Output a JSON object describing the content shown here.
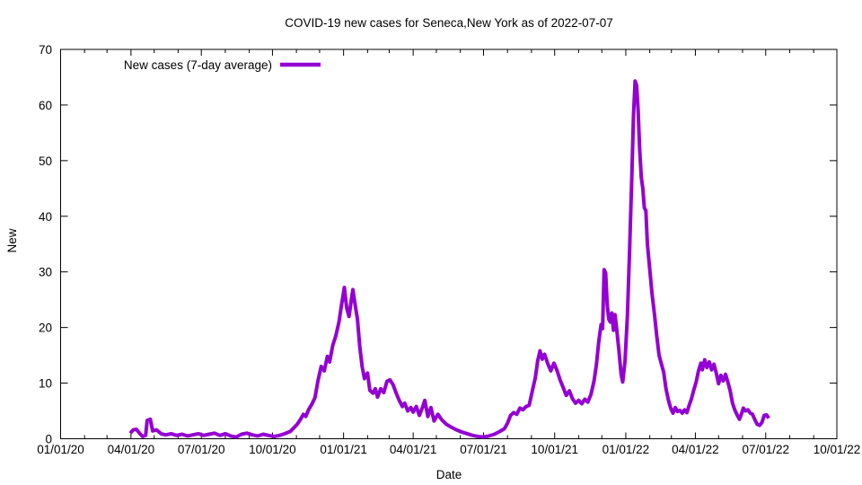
{
  "title": "COVID-19 new cases for Seneca,New York as of 2022-07-07",
  "legend": {
    "label": "New cases (7-day average)"
  },
  "axes": {
    "x_label": "Date",
    "y_label": "New"
  },
  "chart_data": {
    "type": "line",
    "title": "COVID-19 new cases for Seneca,New York as of 2022-07-07",
    "xlabel": "Date",
    "ylabel": "New",
    "x_range": [
      "2020-01-01",
      "2022-10-01"
    ],
    "ylim": [
      0,
      70
    ],
    "y_ticks": [
      0,
      10,
      20,
      30,
      40,
      50,
      60,
      70
    ],
    "x_ticks": [
      {
        "date": "2020-01-01",
        "label": "01/01/20"
      },
      {
        "date": "2020-04-01",
        "label": "04/01/20"
      },
      {
        "date": "2020-07-01",
        "label": "07/01/20"
      },
      {
        "date": "2020-10-01",
        "label": "10/01/20"
      },
      {
        "date": "2021-01-01",
        "label": "01/01/21"
      },
      {
        "date": "2021-04-01",
        "label": "04/01/21"
      },
      {
        "date": "2021-07-01",
        "label": "07/01/21"
      },
      {
        "date": "2021-10-01",
        "label": "10/01/21"
      },
      {
        "date": "2022-01-01",
        "label": "01/01/22"
      },
      {
        "date": "2022-04-01",
        "label": "04/01/22"
      },
      {
        "date": "2022-07-01",
        "label": "07/01/22"
      },
      {
        "date": "2022-10-01",
        "label": "10/01/22"
      }
    ],
    "minor_x_ticks": "monthly",
    "grid": false,
    "legend_position": "top-left",
    "line_color": "#9400d3",
    "background_color": "#ffffff",
    "series": [
      {
        "name": "New cases (7-day average)",
        "points": [
          [
            "2020-03-31",
            1.0
          ],
          [
            "2020-04-04",
            1.6
          ],
          [
            "2020-04-08",
            1.7
          ],
          [
            "2020-04-12",
            1.0
          ],
          [
            "2020-04-16",
            0.4
          ],
          [
            "2020-04-20",
            0.6
          ],
          [
            "2020-04-22",
            3.3
          ],
          [
            "2020-04-26",
            3.5
          ],
          [
            "2020-04-29",
            1.4
          ],
          [
            "2020-05-04",
            1.6
          ],
          [
            "2020-05-10",
            0.9
          ],
          [
            "2020-05-16",
            0.7
          ],
          [
            "2020-05-23",
            0.9
          ],
          [
            "2020-05-30",
            0.6
          ],
          [
            "2020-06-06",
            0.8
          ],
          [
            "2020-06-13",
            0.5
          ],
          [
            "2020-06-20",
            0.7
          ],
          [
            "2020-06-27",
            0.9
          ],
          [
            "2020-07-04",
            0.6
          ],
          [
            "2020-07-11",
            0.8
          ],
          [
            "2020-07-18",
            1.0
          ],
          [
            "2020-07-25",
            0.6
          ],
          [
            "2020-08-01",
            0.9
          ],
          [
            "2020-08-08",
            0.5
          ],
          [
            "2020-08-15",
            0.3
          ],
          [
            "2020-08-22",
            0.8
          ],
          [
            "2020-08-29",
            1.0
          ],
          [
            "2020-09-05",
            0.7
          ],
          [
            "2020-09-12",
            0.5
          ],
          [
            "2020-09-19",
            0.8
          ],
          [
            "2020-09-26",
            0.6
          ],
          [
            "2020-10-03",
            0.4
          ],
          [
            "2020-10-10",
            0.6
          ],
          [
            "2020-10-17",
            0.9
          ],
          [
            "2020-10-24",
            1.3
          ],
          [
            "2020-10-29",
            2.0
          ],
          [
            "2020-11-02",
            2.6
          ],
          [
            "2020-11-06",
            3.4
          ],
          [
            "2020-11-10",
            4.4
          ],
          [
            "2020-11-13",
            4.0
          ],
          [
            "2020-11-17",
            5.3
          ],
          [
            "2020-11-21",
            6.2
          ],
          [
            "2020-11-25",
            7.4
          ],
          [
            "2020-11-29",
            10.5
          ],
          [
            "2020-12-03",
            13.0
          ],
          [
            "2020-12-07",
            12.2
          ],
          [
            "2020-12-11",
            14.8
          ],
          [
            "2020-12-14",
            13.8
          ],
          [
            "2020-12-18",
            16.8
          ],
          [
            "2020-12-22",
            18.5
          ],
          [
            "2020-12-26",
            21.0
          ],
          [
            "2020-12-29",
            23.8
          ],
          [
            "2021-01-02",
            27.2
          ],
          [
            "2021-01-05",
            23.5
          ],
          [
            "2021-01-08",
            22.0
          ],
          [
            "2021-01-11",
            25.0
          ],
          [
            "2021-01-13",
            26.8
          ],
          [
            "2021-01-16",
            24.0
          ],
          [
            "2021-01-19",
            21.5
          ],
          [
            "2021-01-22",
            16.5
          ],
          [
            "2021-01-25",
            13.0
          ],
          [
            "2021-01-28",
            10.8
          ],
          [
            "2021-02-01",
            11.8
          ],
          [
            "2021-02-04",
            8.7
          ],
          [
            "2021-02-08",
            8.2
          ],
          [
            "2021-02-11",
            9.0
          ],
          [
            "2021-02-14",
            7.5
          ],
          [
            "2021-02-18",
            9.0
          ],
          [
            "2021-02-22",
            8.3
          ],
          [
            "2021-02-26",
            10.3
          ],
          [
            "2021-03-02",
            10.6
          ],
          [
            "2021-03-06",
            9.7
          ],
          [
            "2021-03-10",
            8.2
          ],
          [
            "2021-03-14",
            6.9
          ],
          [
            "2021-03-18",
            5.8
          ],
          [
            "2021-03-21",
            6.4
          ],
          [
            "2021-03-25",
            5.0
          ],
          [
            "2021-03-29",
            5.6
          ],
          [
            "2021-04-01",
            4.8
          ],
          [
            "2021-04-05",
            5.8
          ],
          [
            "2021-04-09",
            4.2
          ],
          [
            "2021-04-13",
            5.6
          ],
          [
            "2021-04-16",
            6.9
          ],
          [
            "2021-04-20",
            4.0
          ],
          [
            "2021-04-24",
            5.6
          ],
          [
            "2021-04-28",
            3.2
          ],
          [
            "2021-05-03",
            4.4
          ],
          [
            "2021-05-08",
            3.4
          ],
          [
            "2021-05-14",
            2.6
          ],
          [
            "2021-05-20",
            2.1
          ],
          [
            "2021-05-27",
            1.6
          ],
          [
            "2021-06-03",
            1.2
          ],
          [
            "2021-06-10",
            0.9
          ],
          [
            "2021-06-17",
            0.6
          ],
          [
            "2021-06-24",
            0.4
          ],
          [
            "2021-07-01",
            0.3
          ],
          [
            "2021-07-08",
            0.5
          ],
          [
            "2021-07-15",
            0.8
          ],
          [
            "2021-07-22",
            1.3
          ],
          [
            "2021-07-28",
            1.8
          ],
          [
            "2021-08-01",
            2.8
          ],
          [
            "2021-08-05",
            4.2
          ],
          [
            "2021-08-09",
            4.7
          ],
          [
            "2021-08-13",
            4.4
          ],
          [
            "2021-08-17",
            5.5
          ],
          [
            "2021-08-21",
            5.2
          ],
          [
            "2021-08-25",
            5.8
          ],
          [
            "2021-08-29",
            6.0
          ],
          [
            "2021-09-02",
            8.5
          ],
          [
            "2021-09-06",
            11.0
          ],
          [
            "2021-09-09",
            14.0
          ],
          [
            "2021-09-12",
            15.8
          ],
          [
            "2021-09-15",
            14.3
          ],
          [
            "2021-09-18",
            15.2
          ],
          [
            "2021-09-22",
            13.5
          ],
          [
            "2021-09-26",
            12.2
          ],
          [
            "2021-09-30",
            13.6
          ],
          [
            "2021-10-04",
            12.3
          ],
          [
            "2021-10-08",
            10.6
          ],
          [
            "2021-10-12",
            9.2
          ],
          [
            "2021-10-16",
            7.8
          ],
          [
            "2021-10-20",
            8.6
          ],
          [
            "2021-10-24",
            7.2
          ],
          [
            "2021-10-28",
            6.4
          ],
          [
            "2021-11-01",
            6.9
          ],
          [
            "2021-11-05",
            6.3
          ],
          [
            "2021-11-09",
            7.1
          ],
          [
            "2021-11-13",
            6.6
          ],
          [
            "2021-11-17",
            8.0
          ],
          [
            "2021-11-21",
            10.4
          ],
          [
            "2021-11-24",
            13.3
          ],
          [
            "2021-11-27",
            17.4
          ],
          [
            "2021-11-30",
            20.5
          ],
          [
            "2021-12-02",
            19.8
          ],
          [
            "2021-12-04",
            30.4
          ],
          [
            "2021-12-06",
            29.8
          ],
          [
            "2021-12-08",
            24.0
          ],
          [
            "2021-12-10",
            21.5
          ],
          [
            "2021-12-12",
            21.0
          ],
          [
            "2021-12-14",
            22.6
          ],
          [
            "2021-12-16",
            19.5
          ],
          [
            "2021-12-18",
            22.3
          ],
          [
            "2021-12-20",
            20.0
          ],
          [
            "2021-12-23",
            16.0
          ],
          [
            "2021-12-26",
            11.5
          ],
          [
            "2021-12-28",
            10.2
          ],
          [
            "2021-12-31",
            14.0
          ],
          [
            "2022-01-03",
            22.0
          ],
          [
            "2022-01-06",
            34.0
          ],
          [
            "2022-01-09",
            48.0
          ],
          [
            "2022-01-11",
            58.0
          ],
          [
            "2022-01-13",
            64.3
          ],
          [
            "2022-01-15",
            63.5
          ],
          [
            "2022-01-17",
            59.0
          ],
          [
            "2022-01-19",
            52.0
          ],
          [
            "2022-01-21",
            47.0
          ],
          [
            "2022-01-23",
            45.0
          ],
          [
            "2022-01-25",
            41.5
          ],
          [
            "2022-01-27",
            41.0
          ],
          [
            "2022-01-29",
            35.0
          ],
          [
            "2022-02-01",
            30.5
          ],
          [
            "2022-02-04",
            26.0
          ],
          [
            "2022-02-07",
            22.5
          ],
          [
            "2022-02-10",
            18.5
          ],
          [
            "2022-02-13",
            15.0
          ],
          [
            "2022-02-16",
            13.5
          ],
          [
            "2022-02-19",
            12.0
          ],
          [
            "2022-02-22",
            9.0
          ],
          [
            "2022-02-25",
            7.0
          ],
          [
            "2022-02-28",
            5.5
          ],
          [
            "2022-03-03",
            4.6
          ],
          [
            "2022-03-06",
            5.6
          ],
          [
            "2022-03-09",
            4.9
          ],
          [
            "2022-03-12",
            5.1
          ],
          [
            "2022-03-15",
            4.6
          ],
          [
            "2022-03-18",
            5.2
          ],
          [
            "2022-03-21",
            4.7
          ],
          [
            "2022-03-24",
            6.0
          ],
          [
            "2022-03-27",
            7.2
          ],
          [
            "2022-03-30",
            8.8
          ],
          [
            "2022-04-02",
            10.2
          ],
          [
            "2022-04-05",
            12.2
          ],
          [
            "2022-04-08",
            13.6
          ],
          [
            "2022-04-10",
            12.4
          ],
          [
            "2022-04-13",
            14.2
          ],
          [
            "2022-04-16",
            12.8
          ],
          [
            "2022-04-19",
            13.8
          ],
          [
            "2022-04-22",
            12.4
          ],
          [
            "2022-04-25",
            13.4
          ],
          [
            "2022-04-28",
            11.8
          ],
          [
            "2022-05-01",
            9.9
          ],
          [
            "2022-05-04",
            11.4
          ],
          [
            "2022-05-07",
            10.4
          ],
          [
            "2022-05-10",
            11.6
          ],
          [
            "2022-05-13",
            10.2
          ],
          [
            "2022-05-16",
            8.6
          ],
          [
            "2022-05-19",
            6.4
          ],
          [
            "2022-05-22",
            5.2
          ],
          [
            "2022-05-25",
            4.3
          ],
          [
            "2022-05-28",
            3.5
          ],
          [
            "2022-05-31",
            4.6
          ],
          [
            "2022-06-02",
            5.5
          ],
          [
            "2022-06-05",
            5.0
          ],
          [
            "2022-06-08",
            5.2
          ],
          [
            "2022-06-11",
            4.6
          ],
          [
            "2022-06-14",
            4.4
          ],
          [
            "2022-06-17",
            3.4
          ],
          [
            "2022-06-20",
            2.6
          ],
          [
            "2022-06-23",
            2.4
          ],
          [
            "2022-06-26",
            2.9
          ],
          [
            "2022-06-29",
            4.2
          ],
          [
            "2022-07-02",
            4.3
          ],
          [
            "2022-07-05",
            3.7
          ]
        ]
      }
    ]
  }
}
